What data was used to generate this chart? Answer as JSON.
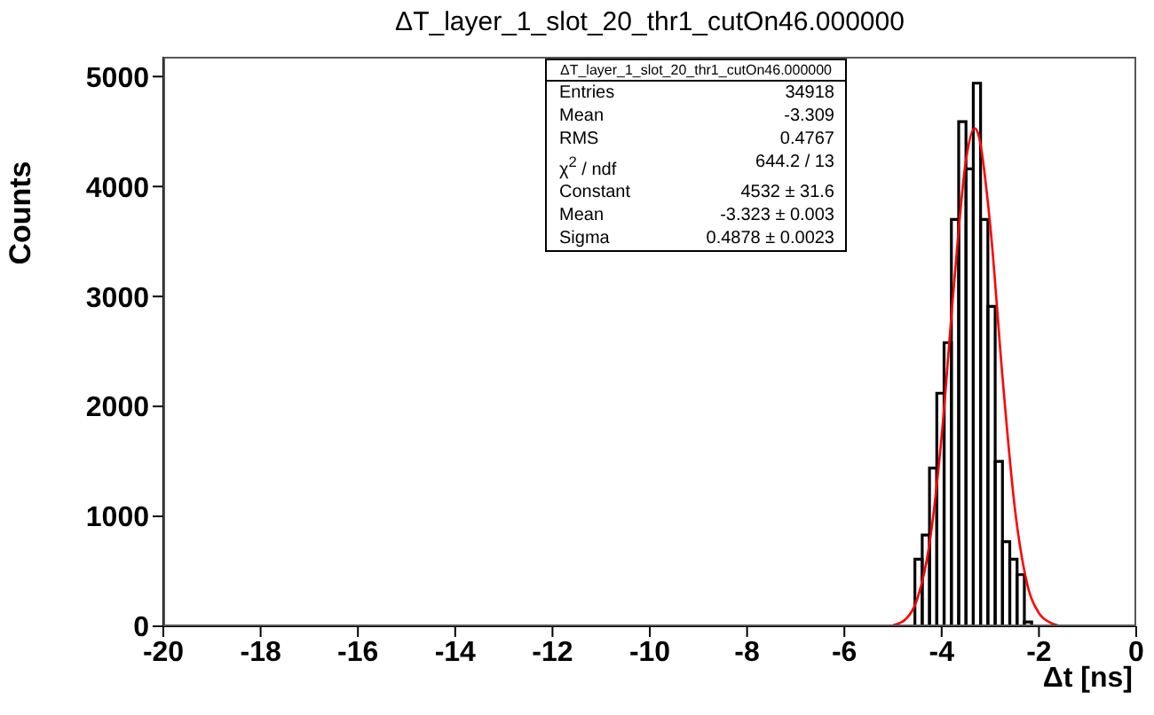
{
  "chart_data": {
    "type": "histogram",
    "title": "ΔT_layer_1_slot_20_thr1_cutOn46.000000",
    "xlabel": "Δt [ns]",
    "ylabel": "Counts",
    "bins": [
      -4.55,
      -4.4,
      -4.25,
      -4.1,
      -3.95,
      -3.8,
      -3.65,
      -3.5,
      -3.35,
      -3.2,
      -3.05,
      -2.9,
      -2.75,
      -2.6,
      -2.45,
      -2.3,
      -2.15
    ],
    "series": [
      {
        "color": "#000000",
        "values": [
          610,
          830,
          1440,
          2120,
          2580,
          3700,
          4590,
          4160,
          4940,
          3700,
          2910,
          1500,
          770,
          610,
          470,
          40
        ]
      },
      {
        "type": "line",
        "color": "#ff0000",
        "x": [
          -5,
          -4.75,
          -4.5,
          -4.25,
          -4,
          -3.75,
          -3.5,
          -3.323,
          -3.25,
          -3,
          -2.75,
          -2.5,
          -2.25,
          -2,
          -1.75,
          -1.5
        ],
        "values": [
          10,
          60,
          250,
          750,
          1730,
          3090,
          4240,
          4530,
          4480,
          3640,
          2270,
          1090,
          400,
          120,
          30,
          0
        ]
      }
    ],
    "xlim": [
      -20,
      0
    ],
    "xticks": [
      -20,
      -18,
      -16,
      -14,
      -12,
      -10,
      -8,
      -6,
      -4,
      -2,
      0
    ],
    "ylim": [
      0,
      5180
    ],
    "yticks": [
      0,
      1000,
      2000,
      3000,
      4000,
      5000
    ],
    "annotations": [
      "ΔT_layer_1_slot_20_thr1_cutOn46.000000",
      "Entries",
      "34918",
      "Mean",
      "-3.309",
      "RMS",
      "0.4767",
      "χ$^{2}$ / ndf",
      "644.2 / 13",
      "Constant",
      "4532 ± 31.6",
      "Mean",
      "-3.323 ± 0.003",
      "Sigma",
      "0.4878 ± 0.0023"
    ]
  }
}
